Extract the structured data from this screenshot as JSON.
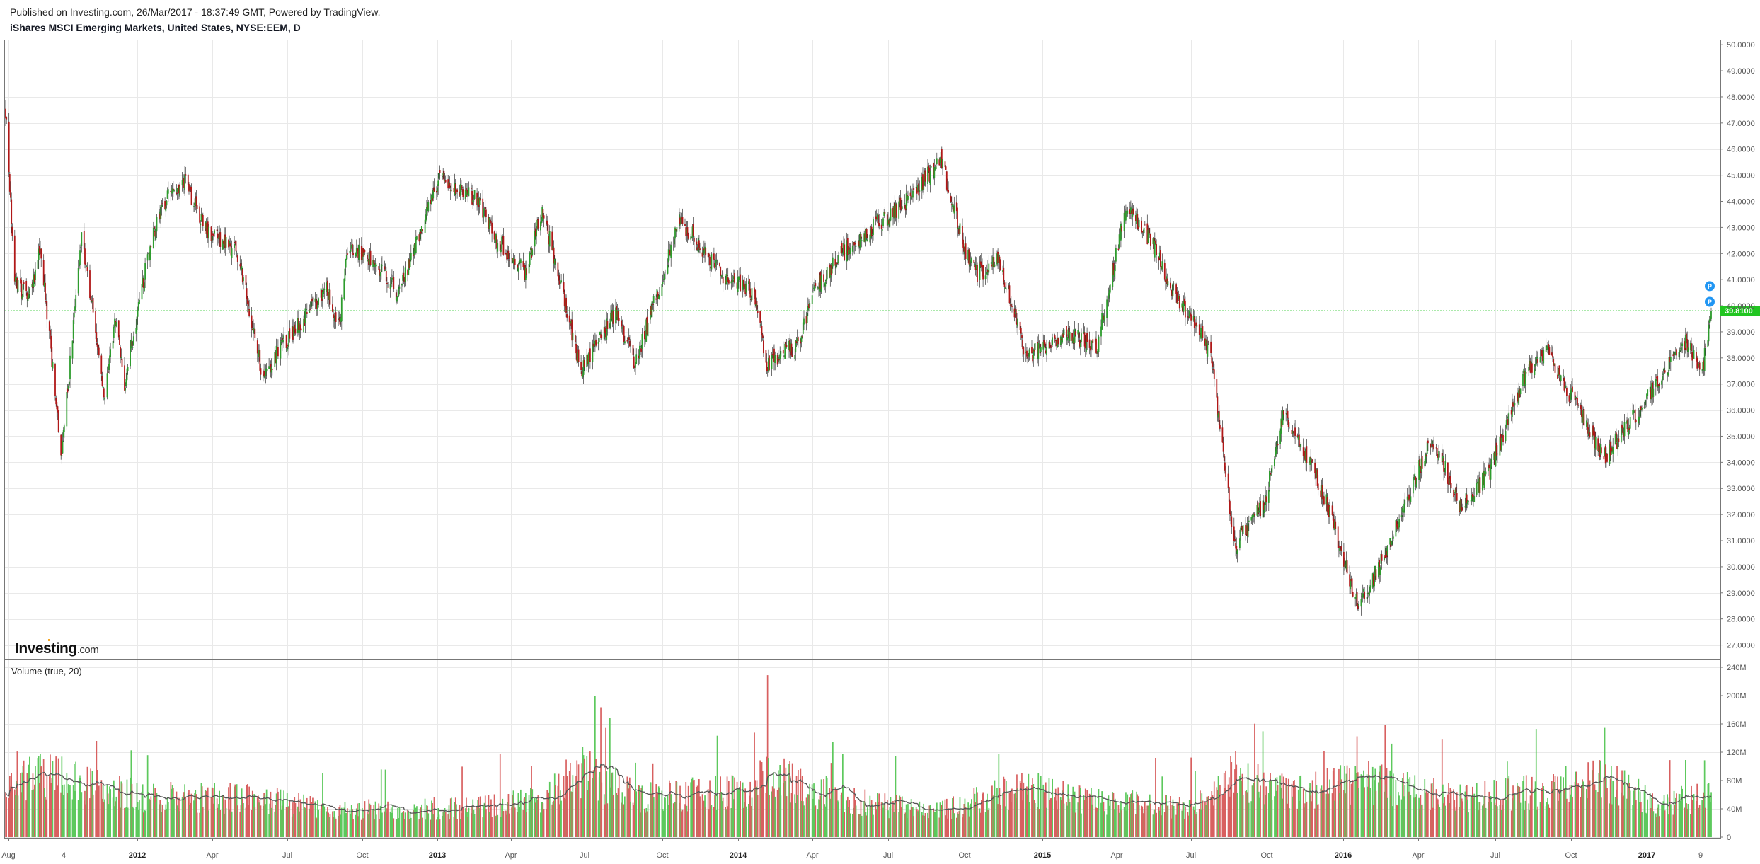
{
  "header": {
    "published": "Published on Investing.com, 26/Mar/2017 - 18:37:49 GMT, Powered by TradingView.",
    "symbol": "iShares MSCI Emerging Markets, United States, NYSE:EEM, D"
  },
  "brand": {
    "name": "Investing",
    "suffix": ".com"
  },
  "colors": {
    "up": "#2e9c2e",
    "down": "#b01818",
    "vol_up": "#5dc95d",
    "vol_down": "#d86060",
    "grid": "#e9e9e9",
    "last_price": "#21c521",
    "marker": "#2196f3",
    "ma": "#555555"
  },
  "markers": [
    "P",
    "P"
  ],
  "chart_data": [
    {
      "type": "candlestick",
      "title": "iShares MSCI Emerging Markets, United States, NYSE:EEM, D",
      "x_ticks": [
        "Aug",
        "4",
        "2012",
        "Apr",
        "Jul",
        "Oct",
        "2013",
        "Apr",
        "Jul",
        "Oct",
        "2014",
        "Apr",
        "Jul",
        "Oct",
        "2015",
        "Apr",
        "Jul",
        "Oct",
        "2016",
        "Apr",
        "Jul",
        "Oct",
        "2017",
        "9"
      ],
      "x_ticks_bold": [
        "2012",
        "2013",
        "2014",
        "2015",
        "2016",
        "2017"
      ],
      "y_ticks": [
        "50.0000",
        "49.0000",
        "48.0000",
        "47.0000",
        "46.0000",
        "45.0000",
        "44.0000",
        "43.0000",
        "42.0000",
        "41.0000",
        "40.0000",
        "39.0000",
        "38.0000",
        "37.0000",
        "36.0000",
        "35.0000",
        "34.0000",
        "33.0000",
        "32.0000",
        "31.0000",
        "30.0000",
        "29.0000",
        "28.0000",
        "27.0000"
      ],
      "ylim": [
        26.5,
        50.1
      ],
      "last_price": 39.81,
      "last_price_label": "39.8100",
      "grid": true,
      "price_path": [
        {
          "date": "2011-07-28",
          "close": 47.5
        },
        {
          "date": "2011-08-08",
          "close": 41.0
        },
        {
          "date": "2011-08-25",
          "close": 40.2
        },
        {
          "date": "2011-09-08",
          "close": 42.2
        },
        {
          "date": "2011-10-04",
          "close": 34.2
        },
        {
          "date": "2011-10-28",
          "close": 42.8
        },
        {
          "date": "2011-11-25",
          "close": 36.5
        },
        {
          "date": "2011-12-08",
          "close": 39.5
        },
        {
          "date": "2011-12-19",
          "close": 37.0
        },
        {
          "date": "2012-01-20",
          "close": 42.5
        },
        {
          "date": "2012-02-08",
          "close": 44.2
        },
        {
          "date": "2012-03-01",
          "close": 44.7
        },
        {
          "date": "2012-03-30",
          "close": 42.8
        },
        {
          "date": "2012-05-04",
          "close": 42.0
        },
        {
          "date": "2012-06-04",
          "close": 37.2
        },
        {
          "date": "2012-06-25",
          "close": 38.4
        },
        {
          "date": "2012-08-20",
          "close": 40.6
        },
        {
          "date": "2012-09-04",
          "close": 39.2
        },
        {
          "date": "2012-09-14",
          "close": 42.3
        },
        {
          "date": "2012-10-20",
          "close": 41.6
        },
        {
          "date": "2012-11-15",
          "close": 40.4
        },
        {
          "date": "2013-01-03",
          "close": 44.9
        },
        {
          "date": "2013-01-29",
          "close": 44.5
        },
        {
          "date": "2013-02-20",
          "close": 44.0
        },
        {
          "date": "2013-03-12",
          "close": 42.6
        },
        {
          "date": "2013-04-18",
          "close": 41.3
        },
        {
          "date": "2013-05-08",
          "close": 43.7
        },
        {
          "date": "2013-06-24",
          "close": 37.5
        },
        {
          "date": "2013-07-05",
          "close": 38.0
        },
        {
          "date": "2013-08-05",
          "close": 39.8
        },
        {
          "date": "2013-08-28",
          "close": 37.7
        },
        {
          "date": "2013-10-22",
          "close": 43.3
        },
        {
          "date": "2013-12-12",
          "close": 41.2
        },
        {
          "date": "2014-01-20",
          "close": 40.5
        },
        {
          "date": "2014-02-03",
          "close": 37.8
        },
        {
          "date": "2014-03-14",
          "close": 38.5
        },
        {
          "date": "2014-04-04",
          "close": 40.6
        },
        {
          "date": "2014-05-05",
          "close": 42.0
        },
        {
          "date": "2014-06-03",
          "close": 42.8
        },
        {
          "date": "2014-07-21",
          "close": 43.9
        },
        {
          "date": "2014-09-03",
          "close": 45.6
        },
        {
          "date": "2014-10-03",
          "close": 42.0
        },
        {
          "date": "2014-10-16",
          "close": 41.2
        },
        {
          "date": "2014-11-12",
          "close": 41.7
        },
        {
          "date": "2014-12-16",
          "close": 38.0
        },
        {
          "date": "2015-01-30",
          "close": 39.0
        },
        {
          "date": "2015-03-11",
          "close": 38.5
        },
        {
          "date": "2015-04-15",
          "close": 43.8
        },
        {
          "date": "2015-05-15",
          "close": 42.5
        },
        {
          "date": "2015-06-15",
          "close": 40.3
        },
        {
          "date": "2015-07-07",
          "close": 39.5
        },
        {
          "date": "2015-07-28",
          "close": 38.0
        },
        {
          "date": "2015-08-24",
          "close": 30.8
        },
        {
          "date": "2015-09-29",
          "close": 32.4
        },
        {
          "date": "2015-10-23",
          "close": 35.8
        },
        {
          "date": "2015-11-10",
          "close": 35.0
        },
        {
          "date": "2015-12-14",
          "close": 32.5
        },
        {
          "date": "2016-01-20",
          "close": 28.5
        },
        {
          "date": "2016-02-16",
          "close": 30.0
        },
        {
          "date": "2016-04-20",
          "close": 35.0
        },
        {
          "date": "2016-05-24",
          "close": 32.3
        },
        {
          "date": "2016-06-27",
          "close": 33.5
        },
        {
          "date": "2016-08-12",
          "close": 37.5
        },
        {
          "date": "2016-09-07",
          "close": 38.2
        },
        {
          "date": "2016-11-14",
          "close": 34.2
        },
        {
          "date": "2016-12-16",
          "close": 35.5
        },
        {
          "date": "2017-01-27",
          "close": 37.5
        },
        {
          "date": "2017-02-21",
          "close": 38.6
        },
        {
          "date": "2017-03-14",
          "close": 37.6
        },
        {
          "date": "2017-03-24",
          "close": 39.81
        }
      ]
    },
    {
      "type": "bar",
      "title": "Volume (true, 20)",
      "y_ticks": [
        "240M",
        "200M",
        "160M",
        "120M",
        "80M",
        "40M",
        "0"
      ],
      "ylim": [
        0,
        240
      ],
      "volume_level_path": [
        {
          "date": "2011-07-28",
          "value": 75
        },
        {
          "date": "2011-08-10",
          "value": 95
        },
        {
          "date": "2011-10-05",
          "value": 90
        },
        {
          "date": "2012-01-15",
          "value": 60
        },
        {
          "date": "2012-05-20",
          "value": 60
        },
        {
          "date": "2012-09-01",
          "value": 40
        },
        {
          "date": "2013-02-01",
          "value": 45
        },
        {
          "date": "2013-05-01",
          "value": 55
        },
        {
          "date": "2013-06-25",
          "value": 100
        },
        {
          "date": "2013-09-01",
          "value": 60
        },
        {
          "date": "2014-01-10",
          "value": 70
        },
        {
          "date": "2014-02-05",
          "value": 95
        },
        {
          "date": "2014-05-15",
          "value": 55
        },
        {
          "date": "2014-09-01",
          "value": 40
        },
        {
          "date": "2014-12-10",
          "value": 75
        },
        {
          "date": "2015-03-10",
          "value": 55
        },
        {
          "date": "2015-07-01",
          "value": 45
        },
        {
          "date": "2015-08-25",
          "value": 95
        },
        {
          "date": "2015-11-01",
          "value": 65
        },
        {
          "date": "2016-01-25",
          "value": 85
        },
        {
          "date": "2016-05-10",
          "value": 60
        },
        {
          "date": "2016-09-01",
          "value": 70
        },
        {
          "date": "2016-11-10",
          "value": 90
        },
        {
          "date": "2017-01-20",
          "value": 50
        },
        {
          "date": "2017-03-24",
          "value": 65
        }
      ]
    }
  ]
}
